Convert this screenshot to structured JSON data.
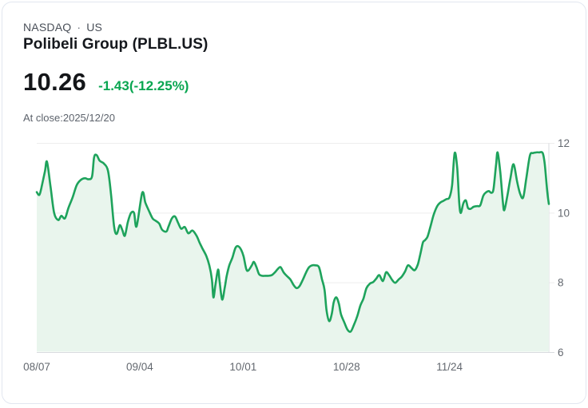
{
  "header": {
    "exchange": "NASDAQ",
    "separator": "·",
    "market": "US",
    "title": "Polibeli Group (PLBL.US)"
  },
  "quote": {
    "price": "10.26",
    "change": "-1.43(-12.25%)",
    "close_info": "At close:2025/12/20"
  },
  "colors": {
    "line": "#1ea35c",
    "fill": "#e9f5ed",
    "change_text": "#0aa651",
    "grid": "#ededee",
    "axis": "#d9dbdf",
    "axis_text": "#63686f"
  },
  "chart_data": {
    "type": "area",
    "ylabel": "",
    "xlabel": "",
    "ylim": [
      6,
      12
    ],
    "yticks": [
      6,
      8,
      10,
      12
    ],
    "grid": true,
    "x_ticks": [
      {
        "label": "08/07",
        "pos": 0.0
      },
      {
        "label": "09/04",
        "pos": 0.201
      },
      {
        "label": "10/01",
        "pos": 0.403
      },
      {
        "label": "10/28",
        "pos": 0.605
      },
      {
        "label": "11/24",
        "pos": 0.806
      }
    ],
    "points": [
      [
        0.0,
        10.6
      ],
      [
        0.005,
        10.52
      ],
      [
        0.009,
        10.72
      ],
      [
        0.016,
        11.2
      ],
      [
        0.02,
        11.47
      ],
      [
        0.027,
        10.75
      ],
      [
        0.034,
        10.0
      ],
      [
        0.042,
        9.8
      ],
      [
        0.048,
        9.92
      ],
      [
        0.055,
        9.85
      ],
      [
        0.062,
        10.15
      ],
      [
        0.07,
        10.45
      ],
      [
        0.078,
        10.8
      ],
      [
        0.086,
        10.95
      ],
      [
        0.094,
        11.0
      ],
      [
        0.101,
        10.97
      ],
      [
        0.108,
        11.05
      ],
      [
        0.112,
        11.6
      ],
      [
        0.117,
        11.66
      ],
      [
        0.123,
        11.5
      ],
      [
        0.131,
        11.42
      ],
      [
        0.139,
        11.22
      ],
      [
        0.145,
        10.55
      ],
      [
        0.151,
        9.62
      ],
      [
        0.156,
        9.4
      ],
      [
        0.162,
        9.65
      ],
      [
        0.167,
        9.52
      ],
      [
        0.172,
        9.35
      ],
      [
        0.178,
        9.75
      ],
      [
        0.184,
        10.0
      ],
      [
        0.19,
        10.0
      ],
      [
        0.195,
        9.62
      ],
      [
        0.206,
        10.58
      ],
      [
        0.212,
        10.3
      ],
      [
        0.218,
        10.1
      ],
      [
        0.226,
        9.85
      ],
      [
        0.232,
        9.78
      ],
      [
        0.239,
        9.7
      ],
      [
        0.245,
        9.52
      ],
      [
        0.253,
        9.47
      ],
      [
        0.257,
        9.6
      ],
      [
        0.264,
        9.85
      ],
      [
        0.27,
        9.9
      ],
      [
        0.276,
        9.72
      ],
      [
        0.282,
        9.55
      ],
      [
        0.289,
        9.6
      ],
      [
        0.296,
        9.42
      ],
      [
        0.304,
        9.5
      ],
      [
        0.312,
        9.35
      ],
      [
        0.318,
        9.15
      ],
      [
        0.323,
        9.0
      ],
      [
        0.331,
        8.77
      ],
      [
        0.337,
        8.5
      ],
      [
        0.342,
        8.1
      ],
      [
        0.345,
        7.58
      ],
      [
        0.349,
        7.95
      ],
      [
        0.354,
        8.38
      ],
      [
        0.357,
        8.05
      ],
      [
        0.362,
        7.52
      ],
      [
        0.367,
        7.85
      ],
      [
        0.371,
        8.2
      ],
      [
        0.376,
        8.5
      ],
      [
        0.382,
        8.72
      ],
      [
        0.388,
        9.0
      ],
      [
        0.393,
        9.05
      ],
      [
        0.399,
        8.95
      ],
      [
        0.404,
        8.75
      ],
      [
        0.409,
        8.4
      ],
      [
        0.413,
        8.35
      ],
      [
        0.42,
        8.5
      ],
      [
        0.424,
        8.6
      ],
      [
        0.429,
        8.45
      ],
      [
        0.434,
        8.25
      ],
      [
        0.44,
        8.2
      ],
      [
        0.446,
        8.2
      ],
      [
        0.452,
        8.2
      ],
      [
        0.459,
        8.22
      ],
      [
        0.465,
        8.3
      ],
      [
        0.471,
        8.4
      ],
      [
        0.476,
        8.45
      ],
      [
        0.482,
        8.3
      ],
      [
        0.488,
        8.2
      ],
      [
        0.495,
        8.1
      ],
      [
        0.501,
        7.95
      ],
      [
        0.507,
        7.85
      ],
      [
        0.513,
        7.9
      ],
      [
        0.52,
        8.1
      ],
      [
        0.526,
        8.3
      ],
      [
        0.532,
        8.45
      ],
      [
        0.538,
        8.5
      ],
      [
        0.544,
        8.5
      ],
      [
        0.551,
        8.45
      ],
      [
        0.557,
        8.1
      ],
      [
        0.562,
        7.8
      ],
      [
        0.566,
        7.2
      ],
      [
        0.571,
        6.9
      ],
      [
        0.576,
        7.1
      ],
      [
        0.58,
        7.45
      ],
      [
        0.585,
        7.58
      ],
      [
        0.59,
        7.4
      ],
      [
        0.594,
        7.1
      ],
      [
        0.601,
        6.85
      ],
      [
        0.607,
        6.65
      ],
      [
        0.613,
        6.6
      ],
      [
        0.619,
        6.78
      ],
      [
        0.626,
        7.05
      ],
      [
        0.632,
        7.35
      ],
      [
        0.638,
        7.55
      ],
      [
        0.644,
        7.85
      ],
      [
        0.651,
        7.98
      ],
      [
        0.657,
        8.02
      ],
      [
        0.663,
        8.12
      ],
      [
        0.669,
        8.22
      ],
      [
        0.676,
        8.05
      ],
      [
        0.682,
        8.3
      ],
      [
        0.688,
        8.22
      ],
      [
        0.694,
        8.08
      ],
      [
        0.7,
        8.0
      ],
      [
        0.707,
        8.1
      ],
      [
        0.713,
        8.18
      ],
      [
        0.719,
        8.32
      ],
      [
        0.725,
        8.5
      ],
      [
        0.732,
        8.42
      ],
      [
        0.738,
        8.36
      ],
      [
        0.744,
        8.52
      ],
      [
        0.749,
        8.82
      ],
      [
        0.754,
        9.15
      ],
      [
        0.758,
        9.22
      ],
      [
        0.763,
        9.32
      ],
      [
        0.769,
        9.62
      ],
      [
        0.775,
        9.95
      ],
      [
        0.782,
        10.2
      ],
      [
        0.788,
        10.3
      ],
      [
        0.794,
        10.35
      ],
      [
        0.8,
        10.4
      ],
      [
        0.806,
        10.45
      ],
      [
        0.811,
        10.8
      ],
      [
        0.816,
        11.72
      ],
      [
        0.821,
        11.3
      ],
      [
        0.825,
        10.3
      ],
      [
        0.828,
        10.0
      ],
      [
        0.833,
        10.28
      ],
      [
        0.838,
        10.36
      ],
      [
        0.842,
        10.15
      ],
      [
        0.847,
        10.12
      ],
      [
        0.853,
        10.18
      ],
      [
        0.86,
        10.2
      ],
      [
        0.866,
        10.22
      ],
      [
        0.872,
        10.5
      ],
      [
        0.878,
        10.6
      ],
      [
        0.883,
        10.63
      ],
      [
        0.888,
        10.58
      ],
      [
        0.892,
        10.7
      ],
      [
        0.897,
        11.4
      ],
      [
        0.9,
        11.74
      ],
      [
        0.905,
        11.2
      ],
      [
        0.91,
        10.35
      ],
      [
        0.913,
        10.08
      ],
      [
        0.919,
        10.5
      ],
      [
        0.925,
        11.0
      ],
      [
        0.931,
        11.4
      ],
      [
        0.938,
        10.9
      ],
      [
        0.944,
        10.55
      ],
      [
        0.95,
        10.45
      ],
      [
        0.956,
        11.0
      ],
      [
        0.963,
        11.65
      ],
      [
        0.969,
        11.72
      ],
      [
        0.975,
        11.74
      ],
      [
        0.981,
        11.74
      ],
      [
        0.988,
        11.72
      ],
      [
        0.992,
        11.4
      ],
      [
        0.997,
        10.6
      ],
      [
        1.0,
        10.26
      ]
    ]
  }
}
